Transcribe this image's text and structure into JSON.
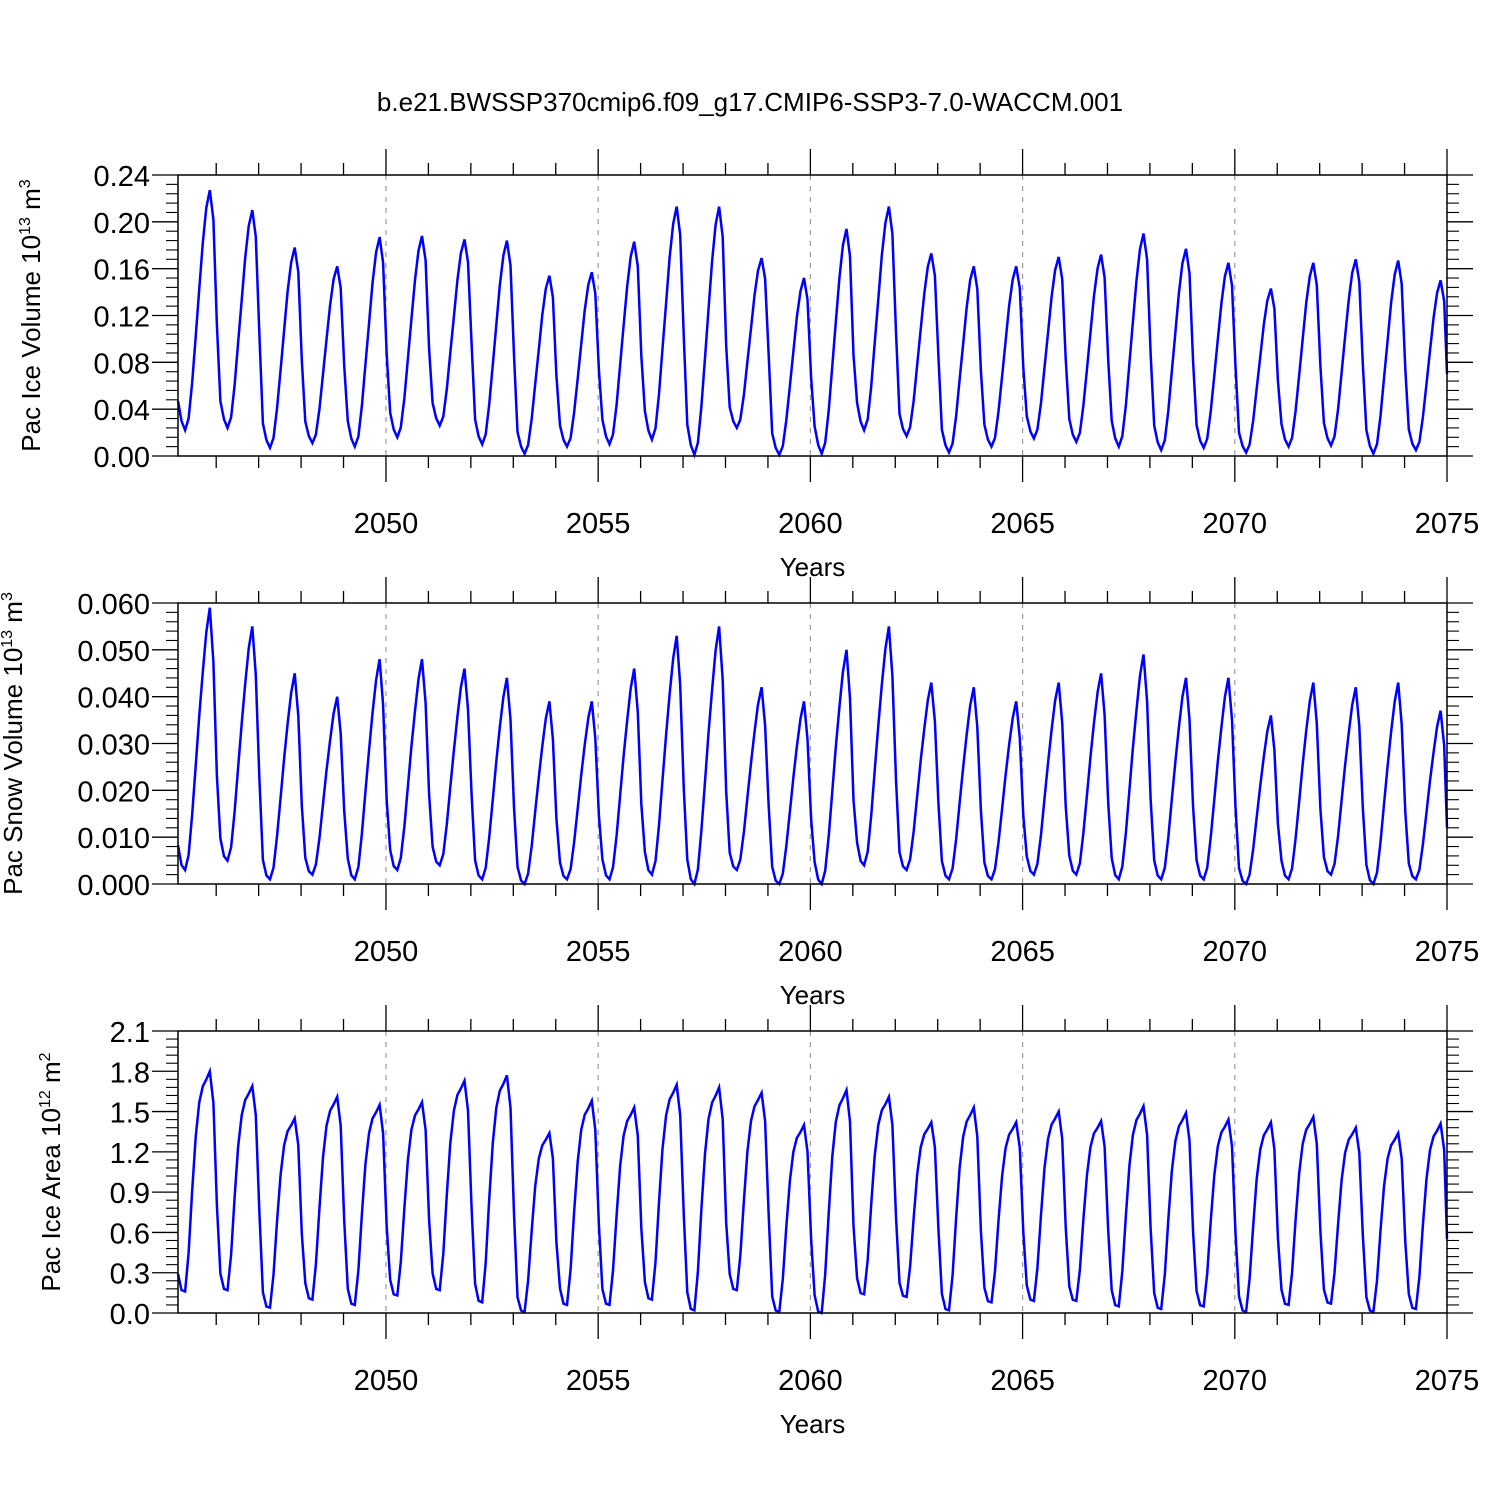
{
  "figure": {
    "title": "b.e21.BWSSP370cmip6.f09_g17.CMIP6-SSP3-7.0-WACCM.001",
    "line_color": "#0000ff"
  },
  "chart_data": [
    {
      "type": "line",
      "name": "pac-ice-volume",
      "ylabel": {
        "text": "Pac Ice Volume 10",
        "exp": "13",
        "unit": " m",
        "unit_exp": "3"
      },
      "xlabel": "Years",
      "xlim": [
        2045.1,
        2075.0
      ],
      "ylim": [
        0.0,
        0.24
      ],
      "xticks": [
        2050,
        2055,
        2060,
        2065,
        2070,
        2075
      ],
      "xtick_labels": [
        "2050",
        "2055",
        "2060",
        "2065",
        "2070",
        "2075"
      ],
      "yticks": [
        0.0,
        0.04,
        0.08,
        0.12,
        0.16,
        0.2,
        0.24
      ],
      "ytick_labels": [
        "0.00",
        "0.04",
        "0.08",
        "0.12",
        "0.16",
        "0.20",
        "0.24"
      ],
      "seasonal_cycle": [
        0.045,
        0.028,
        0.02,
        0.03,
        0.06,
        0.1,
        0.14,
        0.18,
        0.21,
        0.225,
        0.2,
        0.11
      ],
      "annual_peaks": [
        0.227,
        0.21,
        0.178,
        0.162,
        0.187,
        0.188,
        0.185,
        0.184,
        0.154,
        0.157,
        0.183,
        0.213,
        0.213,
        0.169,
        0.152,
        0.194,
        0.213,
        0.173,
        0.162,
        0.162,
        0.17,
        0.172,
        0.19,
        0.177,
        0.165,
        0.143,
        0.165,
        0.168,
        0.167,
        0.15
      ],
      "annual_troughs": [
        0.022,
        0.024,
        0.007,
        0.011,
        0.008,
        0.016,
        0.026,
        0.01,
        0.002,
        0.008,
        0.01,
        0.014,
        0.001,
        0.024,
        0.001,
        0.002,
        0.022,
        0.017,
        0.003,
        0.008,
        0.015,
        0.012,
        0.008,
        0.005,
        0.007,
        0.003,
        0.008,
        0.009,
        0.002,
        0.005
      ],
      "end_value": 0.07
    },
    {
      "type": "line",
      "name": "pac-snow-volume",
      "ylabel": {
        "text": "Pac Snow Volume 10",
        "exp": "13",
        "unit": " m",
        "unit_exp": "3"
      },
      "xlabel": "Years",
      "xlim": [
        2045.1,
        2075.0
      ],
      "ylim": [
        0.0,
        0.06
      ],
      "xticks": [
        2050,
        2055,
        2060,
        2065,
        2070,
        2075
      ],
      "xtick_labels": [
        "2050",
        "2055",
        "2060",
        "2065",
        "2070",
        "2075"
      ],
      "yticks": [
        0.0,
        0.01,
        0.02,
        0.03,
        0.04,
        0.05,
        0.06
      ],
      "ytick_labels": [
        "0.000",
        "0.010",
        "0.020",
        "0.030",
        "0.040",
        "0.050",
        "0.060"
      ],
      "seasonal_cycle": [
        0.008,
        0.004,
        0.003,
        0.006,
        0.014,
        0.024,
        0.034,
        0.043,
        0.051,
        0.056,
        0.045,
        0.022
      ],
      "annual_peaks": [
        0.059,
        0.055,
        0.045,
        0.04,
        0.048,
        0.048,
        0.046,
        0.044,
        0.039,
        0.039,
        0.046,
        0.053,
        0.055,
        0.042,
        0.039,
        0.05,
        0.055,
        0.043,
        0.042,
        0.039,
        0.043,
        0.045,
        0.049,
        0.044,
        0.044,
        0.036,
        0.043,
        0.042,
        0.043,
        0.037
      ],
      "annual_troughs": [
        0.003,
        0.005,
        0.001,
        0.002,
        0.001,
        0.003,
        0.004,
        0.001,
        0.0,
        0.001,
        0.001,
        0.002,
        0.0,
        0.003,
        0.0,
        0.0,
        0.004,
        0.003,
        0.001,
        0.001,
        0.002,
        0.002,
        0.001,
        0.001,
        0.001,
        0.0,
        0.001,
        0.002,
        0.0,
        0.001
      ],
      "end_value": 0.012
    },
    {
      "type": "line",
      "name": "pac-ice-area",
      "ylabel": {
        "text": "Pac Ice Area 10",
        "exp": "12",
        "unit": " m",
        "unit_exp": "2"
      },
      "xlabel": "Years",
      "xlim": [
        2045.1,
        2075.0
      ],
      "ylim": [
        0.0,
        2.1
      ],
      "xticks": [
        2050,
        2055,
        2060,
        2065,
        2070,
        2075
      ],
      "xtick_labels": [
        "2050",
        "2055",
        "2060",
        "2065",
        "2070",
        "2075"
      ],
      "yticks": [
        0.0,
        0.3,
        0.6,
        0.9,
        1.2,
        1.5,
        1.8,
        2.1
      ],
      "ytick_labels": [
        "0.0",
        "0.3",
        "0.6",
        "0.9",
        "1.2",
        "1.5",
        "1.8",
        "2.1"
      ],
      "seasonal_cycle": [
        0.3,
        0.18,
        0.17,
        0.45,
        0.9,
        1.3,
        1.55,
        1.67,
        1.72,
        1.78,
        1.55,
        0.8
      ],
      "annual_peaks": [
        1.8,
        1.69,
        1.45,
        1.61,
        1.55,
        1.57,
        1.73,
        1.77,
        1.34,
        1.58,
        1.53,
        1.7,
        1.68,
        1.64,
        1.4,
        1.66,
        1.61,
        1.42,
        1.53,
        1.42,
        1.5,
        1.43,
        1.54,
        1.49,
        1.44,
        1.42,
        1.46,
        1.38,
        1.34,
        1.41
      ],
      "annual_troughs": [
        0.16,
        0.17,
        0.04,
        0.1,
        0.06,
        0.13,
        0.17,
        0.08,
        0.01,
        0.06,
        0.06,
        0.1,
        0.02,
        0.17,
        0.01,
        0.0,
        0.14,
        0.12,
        0.02,
        0.08,
        0.09,
        0.09,
        0.05,
        0.03,
        0.05,
        0.01,
        0.06,
        0.07,
        0.01,
        0.03
      ],
      "end_value": 0.55
    }
  ]
}
